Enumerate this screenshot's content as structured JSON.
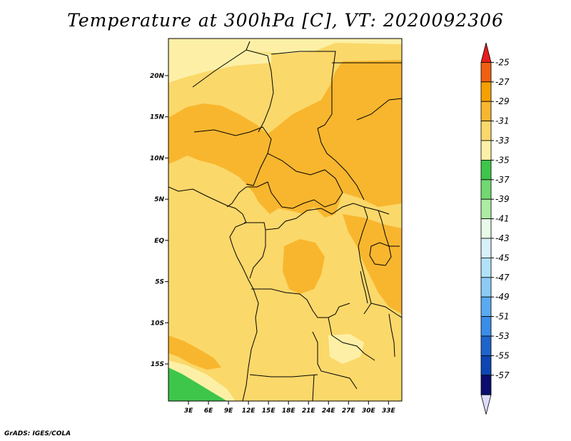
{
  "title": "Temperature at 300hPa [C], VT: 2020092306",
  "credit": "GrADS: IGES/COLA",
  "map": {
    "lat_ticks": [
      "20N",
      "15N",
      "10N",
      "5N",
      "EQ",
      "5S",
      "10S",
      "15S"
    ],
    "lon_ticks": [
      "3E",
      "6E",
      "9E",
      "12E",
      "15E",
      "18E",
      "21E",
      "24E",
      "27E",
      "30E",
      "33E"
    ],
    "lat_values": [
      20,
      15,
      10,
      5,
      0,
      -5,
      -10,
      -15
    ],
    "lon_values": [
      3,
      6,
      9,
      12,
      15,
      18,
      21,
      24,
      27,
      30,
      33
    ],
    "extent": {
      "lon_min": 0,
      "lon_max": 35,
      "lat_min": -19.5,
      "lat_max": 24.5
    }
  },
  "colorbar": {
    "levels": [
      "-25",
      "-27",
      "-29",
      "-31",
      "-33",
      "-35",
      "-37",
      "-39",
      "-41",
      "-43",
      "-45",
      "-47",
      "-49",
      "-51",
      "-53",
      "-55",
      "-57"
    ],
    "colors": [
      "#e81c1c",
      "#f06010",
      "#f5a000",
      "#f8b62e",
      "#fbd86a",
      "#fdf0a6",
      "#3ec64a",
      "#72d872",
      "#aeeca4",
      "#e8fbe8",
      "#d7f1fb",
      "#b2e2f9",
      "#8ccbf5",
      "#5aaaf0",
      "#3a8de8",
      "#1e64cc",
      "#0d46b4",
      "#0b0e6e",
      "#dcdcfa"
    ]
  },
  "regions": [
    {
      "name": "base",
      "color": "#fbd86a"
    },
    {
      "name": "pale",
      "color": "#fdf0a6"
    },
    {
      "name": "orange",
      "color": "#f8b62e"
    },
    {
      "name": "green",
      "color": "#3ec64a"
    }
  ]
}
